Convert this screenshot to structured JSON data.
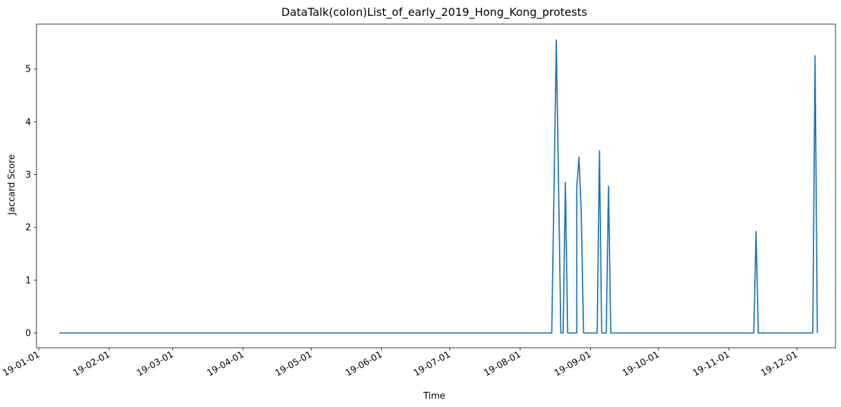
{
  "chart_data": {
    "type": "line",
    "title": "DataTalk(colon)List_of_early_2019_Hong_Kong_protests",
    "xlabel": "Time",
    "ylabel": "Jaccard Score",
    "x_tick_labels": [
      "19-01-01",
      "19-02-01",
      "19-03-01",
      "19-04-01",
      "19-05-01",
      "19-06-01",
      "19-07-01",
      "19-08-01",
      "19-09-01",
      "19-10-01",
      "19-11-01",
      "19-12-01"
    ],
    "y_tick_labels": [
      "0",
      "1",
      "2",
      "3",
      "4",
      "5"
    ],
    "xlim": [
      "2018-12-31",
      "2019-12-18"
    ],
    "ylim": [
      -0.28,
      5.85
    ],
    "grid": false,
    "legend": "none",
    "series": [
      {
        "color": "#1f77b4",
        "points": [
          [
            "2019-01-10",
            0
          ],
          [
            "2019-08-15",
            0
          ],
          [
            "2019-08-17",
            5.55
          ],
          [
            "2019-08-19",
            0
          ],
          [
            "2019-08-20",
            0
          ],
          [
            "2019-08-21",
            2.85
          ],
          [
            "2019-08-22",
            0
          ],
          [
            "2019-08-26",
            0
          ],
          [
            "2019-08-26",
            2.75
          ],
          [
            "2019-08-27",
            3.33
          ],
          [
            "2019-08-28",
            2.25
          ],
          [
            "2019-08-29",
            0
          ],
          [
            "2019-09-04",
            0
          ],
          [
            "2019-09-05",
            3.45
          ],
          [
            "2019-09-06",
            0
          ],
          [
            "2019-09-08",
            0
          ],
          [
            "2019-09-09",
            2.78
          ],
          [
            "2019-09-10",
            0
          ],
          [
            "2019-11-12",
            0
          ],
          [
            "2019-11-13",
            1.92
          ],
          [
            "2019-11-14",
            0
          ],
          [
            "2019-12-08",
            0
          ],
          [
            "2019-12-09",
            5.25
          ],
          [
            "2019-12-10",
            0
          ]
        ]
      }
    ]
  }
}
